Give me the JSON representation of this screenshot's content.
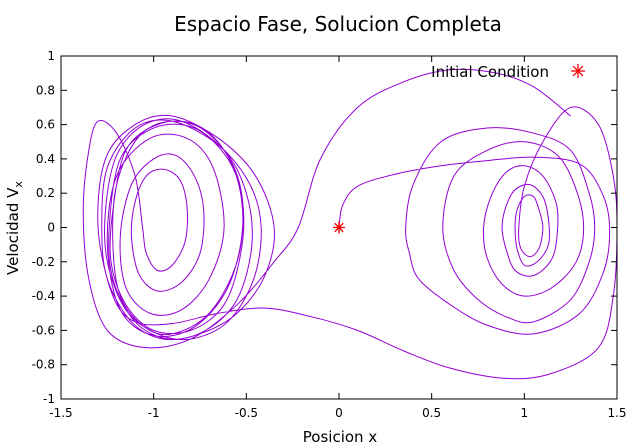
{
  "chart_data": {
    "type": "line",
    "title": "Espacio Fase, Solucion Completa",
    "xlabel": "Posicion x",
    "ylabel_base": "Velocidad V",
    "ylabel_sub": "x",
    "xlim": [
      -1.5,
      1.5
    ],
    "ylim": [
      -1,
      1
    ],
    "x_ticks": [
      -1.5,
      -1,
      -0.5,
      0,
      0.5,
      1,
      1.5
    ],
    "x_tick_labels": [
      "-1.5",
      "-1",
      "-0.5",
      "0",
      "0.5",
      "1",
      "1.5"
    ],
    "y_ticks": [
      -1,
      -0.8,
      -0.6,
      -0.4,
      -0.2,
      0,
      0.2,
      0.4,
      0.6,
      0.8,
      1
    ],
    "y_tick_labels": [
      "-1",
      "-0.8",
      "-0.6",
      "-0.4",
      "-0.2",
      "0",
      "0.2",
      "0.4",
      "0.6",
      "0.8",
      "1"
    ],
    "grid": false,
    "legend_position": "top-right",
    "series": [
      {
        "name": "Initial Condition",
        "type": "scatter",
        "color": "#ff0000",
        "points": [
          [
            0,
            0
          ]
        ]
      },
      {
        "type": "line",
        "color": "#9400d3",
        "points": [
          [
            0,
            0
          ],
          [
            0.02,
            0.13
          ],
          [
            0.1,
            0.24
          ],
          [
            0.3,
            0.31
          ],
          [
            0.55,
            0.36
          ],
          [
            0.8,
            0.39
          ],
          [
            1.05,
            0.41
          ],
          [
            1.3,
            0.37
          ],
          [
            1.42,
            0.2
          ],
          [
            1.46,
            0
          ],
          [
            1.43,
            -0.25
          ],
          [
            1.3,
            -0.5
          ],
          [
            1.05,
            -0.62
          ],
          [
            0.8,
            -0.57
          ],
          [
            0.6,
            -0.45
          ],
          [
            0.43,
            -0.3
          ],
          [
            0.38,
            -0.15
          ],
          [
            0.36,
            0
          ],
          [
            0.4,
            0.25
          ],
          [
            0.55,
            0.5
          ],
          [
            0.8,
            0.58
          ],
          [
            1.05,
            0.55
          ],
          [
            1.25,
            0.45
          ],
          [
            1.35,
            0.2
          ],
          [
            1.38,
            0
          ],
          [
            1.35,
            -0.2
          ],
          [
            1.25,
            -0.42
          ],
          [
            1.05,
            -0.55
          ],
          [
            0.9,
            -0.52
          ],
          [
            0.75,
            -0.42
          ],
          [
            0.62,
            -0.25
          ],
          [
            0.56,
            0
          ],
          [
            0.62,
            0.3
          ],
          [
            0.8,
            0.45
          ],
          [
            1.0,
            0.5
          ],
          [
            1.18,
            0.42
          ],
          [
            1.28,
            0.22
          ],
          [
            1.32,
            0
          ],
          [
            1.28,
            -0.2
          ],
          [
            1.15,
            -0.35
          ],
          [
            1.0,
            -0.4
          ],
          [
            0.88,
            -0.33
          ],
          [
            0.8,
            -0.18
          ],
          [
            0.78,
            0
          ],
          [
            0.82,
            0.18
          ],
          [
            0.9,
            0.32
          ],
          [
            1.0,
            0.36
          ],
          [
            1.1,
            0.3
          ],
          [
            1.17,
            0.15
          ],
          [
            1.18,
            0
          ],
          [
            1.15,
            -0.18
          ],
          [
            1.05,
            -0.28
          ],
          [
            0.95,
            -0.25
          ],
          [
            0.9,
            -0.12
          ],
          [
            0.88,
            0
          ],
          [
            0.9,
            0.12
          ],
          [
            0.95,
            0.22
          ],
          [
            1.03,
            0.25
          ],
          [
            1.1,
            0.18
          ],
          [
            1.13,
            0.05
          ],
          [
            1.13,
            -0.1
          ],
          [
            1.07,
            -0.2
          ],
          [
            1.0,
            -0.22
          ],
          [
            0.96,
            -0.12
          ],
          [
            0.95,
            0
          ],
          [
            0.96,
            0.1
          ],
          [
            1.0,
            0.18
          ],
          [
            1.05,
            0.18
          ],
          [
            1.08,
            0.1
          ],
          [
            1.1,
            0
          ],
          [
            1.08,
            -0.12
          ],
          [
            1.03,
            -0.17
          ],
          [
            0.98,
            -0.12
          ],
          [
            0.97,
            0
          ],
          [
            1.0,
            0.24
          ],
          [
            1.1,
            0.5
          ],
          [
            1.25,
            0.7
          ],
          [
            1.4,
            0.6
          ],
          [
            1.48,
            0.3
          ],
          [
            1.5,
            0
          ],
          [
            1.48,
            -0.4
          ],
          [
            1.4,
            -0.7
          ],
          [
            1.15,
            -0.85
          ],
          [
            0.9,
            -0.88
          ],
          [
            0.6,
            -0.82
          ],
          [
            0.35,
            -0.72
          ],
          [
            0.1,
            -0.6
          ],
          [
            -0.15,
            -0.52
          ],
          [
            -0.4,
            -0.47
          ],
          [
            -0.65,
            -0.5
          ],
          [
            -0.9,
            -0.56
          ],
          [
            -1.1,
            -0.55
          ],
          [
            -1.22,
            -0.4
          ],
          [
            -1.3,
            0
          ],
          [
            -1.26,
            0.4
          ],
          [
            -1.1,
            0.6
          ],
          [
            -0.9,
            0.65
          ],
          [
            -0.65,
            0.52
          ],
          [
            -0.45,
            0.3
          ],
          [
            -0.35,
            0
          ],
          [
            -0.4,
            -0.28
          ],
          [
            -0.55,
            -0.5
          ],
          [
            -0.75,
            -0.62
          ],
          [
            -0.95,
            -0.65
          ],
          [
            -1.12,
            -0.55
          ],
          [
            -1.25,
            -0.3
          ],
          [
            -1.28,
            0
          ],
          [
            -1.25,
            0.35
          ],
          [
            -1.1,
            0.58
          ],
          [
            -0.9,
            0.62
          ],
          [
            -0.65,
            0.48
          ],
          [
            -0.48,
            0.25
          ],
          [
            -0.42,
            0
          ],
          [
            -0.46,
            -0.3
          ],
          [
            -0.6,
            -0.55
          ],
          [
            -0.8,
            -0.65
          ],
          [
            -0.98,
            -0.62
          ],
          [
            -1.15,
            -0.48
          ],
          [
            -1.25,
            -0.2
          ],
          [
            -1.26,
            0.1
          ],
          [
            -1.2,
            0.42
          ],
          [
            -1.05,
            0.6
          ],
          [
            -0.85,
            0.62
          ],
          [
            -0.62,
            0.45
          ],
          [
            -0.5,
            0.2
          ],
          [
            -0.47,
            -0.1
          ],
          [
            -0.55,
            -0.42
          ],
          [
            -0.72,
            -0.6
          ],
          [
            -0.92,
            -0.65
          ],
          [
            -1.1,
            -0.55
          ],
          [
            -1.22,
            -0.3
          ],
          [
            -1.24,
            0
          ],
          [
            -1.18,
            0.4
          ],
          [
            -1.0,
            0.58
          ],
          [
            -0.78,
            0.58
          ],
          [
            -0.6,
            0.4
          ],
          [
            -0.52,
            0.15
          ],
          [
            -0.53,
            -0.15
          ],
          [
            -0.62,
            -0.45
          ],
          [
            -0.8,
            -0.6
          ],
          [
            -1.0,
            -0.6
          ],
          [
            -1.15,
            -0.45
          ],
          [
            -1.23,
            -0.2
          ],
          [
            -1.22,
            0.1
          ],
          [
            -1.15,
            0.45
          ],
          [
            -0.98,
            0.6
          ],
          [
            -0.78,
            0.6
          ],
          [
            -0.6,
            0.42
          ],
          [
            -0.52,
            0.15
          ],
          [
            -0.55,
            -0.2
          ],
          [
            -0.7,
            -0.5
          ],
          [
            -0.9,
            -0.62
          ],
          [
            -1.05,
            -0.58
          ],
          [
            -1.18,
            -0.4
          ],
          [
            -1.22,
            -0.1
          ],
          [
            -1.2,
            0.25
          ],
          [
            -1.08,
            0.53
          ],
          [
            -0.9,
            0.62
          ],
          [
            -0.7,
            0.55
          ],
          [
            -0.56,
            0.32
          ],
          [
            -0.52,
            0
          ],
          [
            -0.6,
            -0.35
          ],
          [
            -0.78,
            -0.58
          ],
          [
            -1.0,
            -0.63
          ],
          [
            -1.18,
            -0.48
          ],
          [
            -1.25,
            -0.1
          ],
          [
            -1.2,
            0.3
          ],
          [
            -1.02,
            0.52
          ],
          [
            -0.82,
            0.52
          ],
          [
            -0.68,
            0.35
          ],
          [
            -0.62,
            0
          ],
          [
            -0.7,
            -0.3
          ],
          [
            -0.85,
            -0.48
          ],
          [
            -1.02,
            -0.5
          ],
          [
            -1.15,
            -0.35
          ],
          [
            -1.18,
            -0.05
          ],
          [
            -1.12,
            0.25
          ],
          [
            -1.0,
            0.4
          ],
          [
            -0.88,
            0.42
          ],
          [
            -0.78,
            0.3
          ],
          [
            -0.73,
            0.1
          ],
          [
            -0.75,
            -0.15
          ],
          [
            -0.85,
            -0.32
          ],
          [
            -0.98,
            -0.37
          ],
          [
            -1.08,
            -0.27
          ],
          [
            -1.12,
            -0.05
          ],
          [
            -1.1,
            0.15
          ],
          [
            -1.04,
            0.3
          ],
          [
            -0.95,
            0.34
          ],
          [
            -0.86,
            0.28
          ],
          [
            -0.82,
            0.12
          ],
          [
            -0.83,
            -0.08
          ],
          [
            -0.9,
            -0.22
          ],
          [
            -0.98,
            -0.25
          ],
          [
            -1.04,
            -0.15
          ],
          [
            -1.06,
            0
          ],
          [
            -1.1,
            0.3
          ],
          [
            -1.2,
            0.55
          ],
          [
            -1.3,
            0.62
          ],
          [
            -1.35,
            0.45
          ],
          [
            -1.38,
            0.1
          ],
          [
            -1.35,
            -0.3
          ],
          [
            -1.25,
            -0.6
          ],
          [
            -1.05,
            -0.7
          ],
          [
            -0.8,
            -0.65
          ],
          [
            -0.55,
            -0.45
          ],
          [
            -0.35,
            -0.2
          ],
          [
            -0.22,
            0
          ],
          [
            -0.1,
            0.4
          ],
          [
            0.1,
            0.7
          ],
          [
            0.35,
            0.85
          ],
          [
            0.6,
            0.92
          ],
          [
            0.85,
            0.9
          ],
          [
            1.05,
            0.82
          ],
          [
            1.25,
            0.65
          ]
        ]
      }
    ]
  }
}
